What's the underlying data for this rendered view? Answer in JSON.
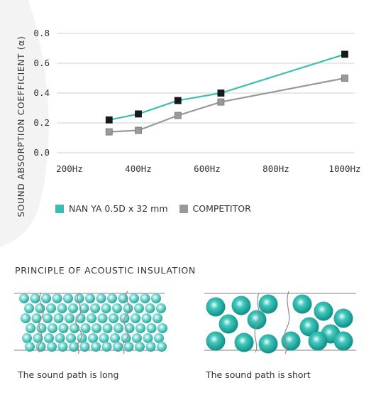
{
  "chart_data": {
    "type": "line",
    "ylabel": "SOUND ABSORPTION COEFFICIENT (α)",
    "xlabel": "",
    "title": "",
    "x_tick_labels": [
      "200Hz",
      "400Hz",
      "600Hz",
      "800Hz",
      "1000Hz"
    ],
    "x_ticks": [
      200,
      400,
      600,
      800,
      1000
    ],
    "xlim": [
      200,
      1000
    ],
    "y_tick_labels": [
      "0.0",
      "0.2",
      "0.4",
      "0.6",
      "0.8"
    ],
    "y_ticks": [
      0.0,
      0.2,
      0.4,
      0.6,
      0.8
    ],
    "ylim": [
      0.0,
      0.8
    ],
    "grid": "horizontal",
    "legend_position": "bottom",
    "series": [
      {
        "name": "NAN YA 0.5D x 32 mm",
        "color": "#3dbdb2",
        "marker_color": "#1a1a1a",
        "x": [
          315,
          400,
          515,
          640,
          1000
        ],
        "y": [
          0.22,
          0.26,
          0.35,
          0.4,
          0.66
        ]
      },
      {
        "name": "COMPETITOR",
        "color": "#999999",
        "marker_color": "#9a9a9a",
        "x": [
          315,
          400,
          515,
          640,
          1000
        ],
        "y": [
          0.14,
          0.15,
          0.25,
          0.34,
          0.5
        ]
      }
    ]
  },
  "legend": {
    "items": [
      {
        "label": "NAN YA 0.5D x 32 mm",
        "color": "#3dbdb2"
      },
      {
        "label": "COMPETITOR",
        "color": "#999999"
      }
    ]
  },
  "diagram": {
    "title": "PRINCIPLE OF ACOUSTIC INSULATION",
    "left_caption": "The sound path is long",
    "right_caption": "The sound path is short",
    "particle_color": "#3dbdb2"
  }
}
